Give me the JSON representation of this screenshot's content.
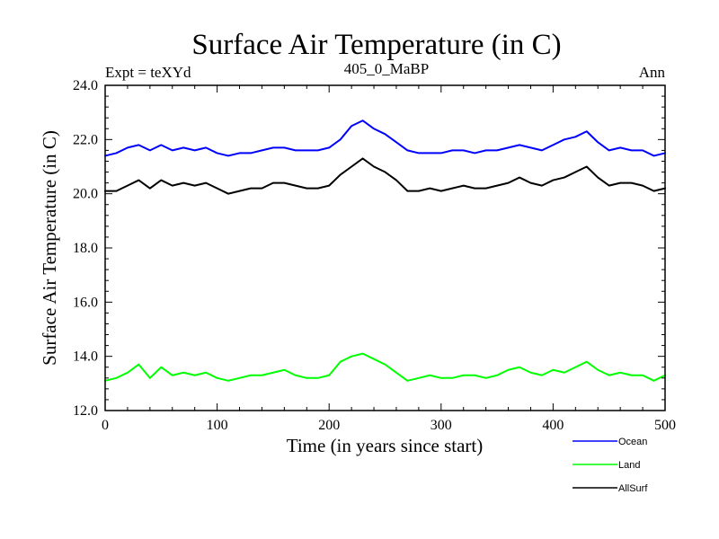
{
  "chart_data": {
    "type": "line",
    "title": "Surface Air Temperature (in C)",
    "subtitle": "405_0_MaBP",
    "expt_label": "Expt = teXYd",
    "period_label": "Ann",
    "xlabel": "Time (in years since start)",
    "ylabel": "Surface Air Temperature (in C)",
    "xlim": [
      0,
      500
    ],
    "ylim": [
      12.0,
      24.0
    ],
    "x_ticks": [
      0,
      100,
      200,
      300,
      400,
      500
    ],
    "x_tick_labels": [
      "0",
      "100",
      "200",
      "300",
      "400",
      "500"
    ],
    "y_ticks": [
      12.0,
      14.0,
      16.0,
      18.0,
      20.0,
      22.0,
      24.0
    ],
    "y_tick_labels": [
      "12.0",
      "14.0",
      "16.0",
      "18.0",
      "20.0",
      "22.0",
      "24.0"
    ],
    "grid": false,
    "legend_position": "bottom-right outside plot",
    "x": [
      0,
      10,
      20,
      30,
      40,
      50,
      60,
      70,
      80,
      90,
      100,
      110,
      120,
      130,
      140,
      150,
      160,
      170,
      180,
      190,
      200,
      210,
      220,
      230,
      240,
      250,
      260,
      270,
      280,
      290,
      300,
      310,
      320,
      330,
      340,
      350,
      360,
      370,
      380,
      390,
      400,
      410,
      420,
      430,
      440,
      450,
      460,
      470,
      480,
      490,
      500
    ],
    "series": [
      {
        "name": "Ocean",
        "color": "#0000ff",
        "values": [
          21.4,
          21.5,
          21.7,
          21.8,
          21.6,
          21.8,
          21.6,
          21.7,
          21.6,
          21.7,
          21.5,
          21.4,
          21.5,
          21.5,
          21.6,
          21.7,
          21.7,
          21.6,
          21.6,
          21.6,
          21.7,
          22.0,
          22.5,
          22.7,
          22.4,
          22.2,
          21.9,
          21.6,
          21.5,
          21.5,
          21.5,
          21.6,
          21.6,
          21.5,
          21.6,
          21.6,
          21.7,
          21.8,
          21.7,
          21.6,
          21.8,
          22.0,
          22.1,
          22.3,
          21.9,
          21.6,
          21.7,
          21.6,
          21.6,
          21.4,
          21.5
        ]
      },
      {
        "name": "Land",
        "color": "#00ff00",
        "values": [
          13.1,
          13.2,
          13.4,
          13.7,
          13.2,
          13.6,
          13.3,
          13.4,
          13.3,
          13.4,
          13.2,
          13.1,
          13.2,
          13.3,
          13.3,
          13.4,
          13.5,
          13.3,
          13.2,
          13.2,
          13.3,
          13.8,
          14.0,
          14.1,
          13.9,
          13.7,
          13.4,
          13.1,
          13.2,
          13.3,
          13.2,
          13.2,
          13.3,
          13.3,
          13.2,
          13.3,
          13.5,
          13.6,
          13.4,
          13.3,
          13.5,
          13.4,
          13.6,
          13.8,
          13.5,
          13.3,
          13.4,
          13.3,
          13.3,
          13.1,
          13.3
        ]
      },
      {
        "name": "AllSurf",
        "color": "#000000",
        "values": [
          20.1,
          20.1,
          20.3,
          20.5,
          20.2,
          20.5,
          20.3,
          20.4,
          20.3,
          20.4,
          20.2,
          20.0,
          20.1,
          20.2,
          20.2,
          20.4,
          20.4,
          20.3,
          20.2,
          20.2,
          20.3,
          20.7,
          21.0,
          21.3,
          21.0,
          20.8,
          20.5,
          20.1,
          20.1,
          20.2,
          20.1,
          20.2,
          20.3,
          20.2,
          20.2,
          20.3,
          20.4,
          20.6,
          20.4,
          20.3,
          20.5,
          20.6,
          20.8,
          21.0,
          20.6,
          20.3,
          20.4,
          20.4,
          20.3,
          20.1,
          20.2
        ]
      }
    ]
  }
}
